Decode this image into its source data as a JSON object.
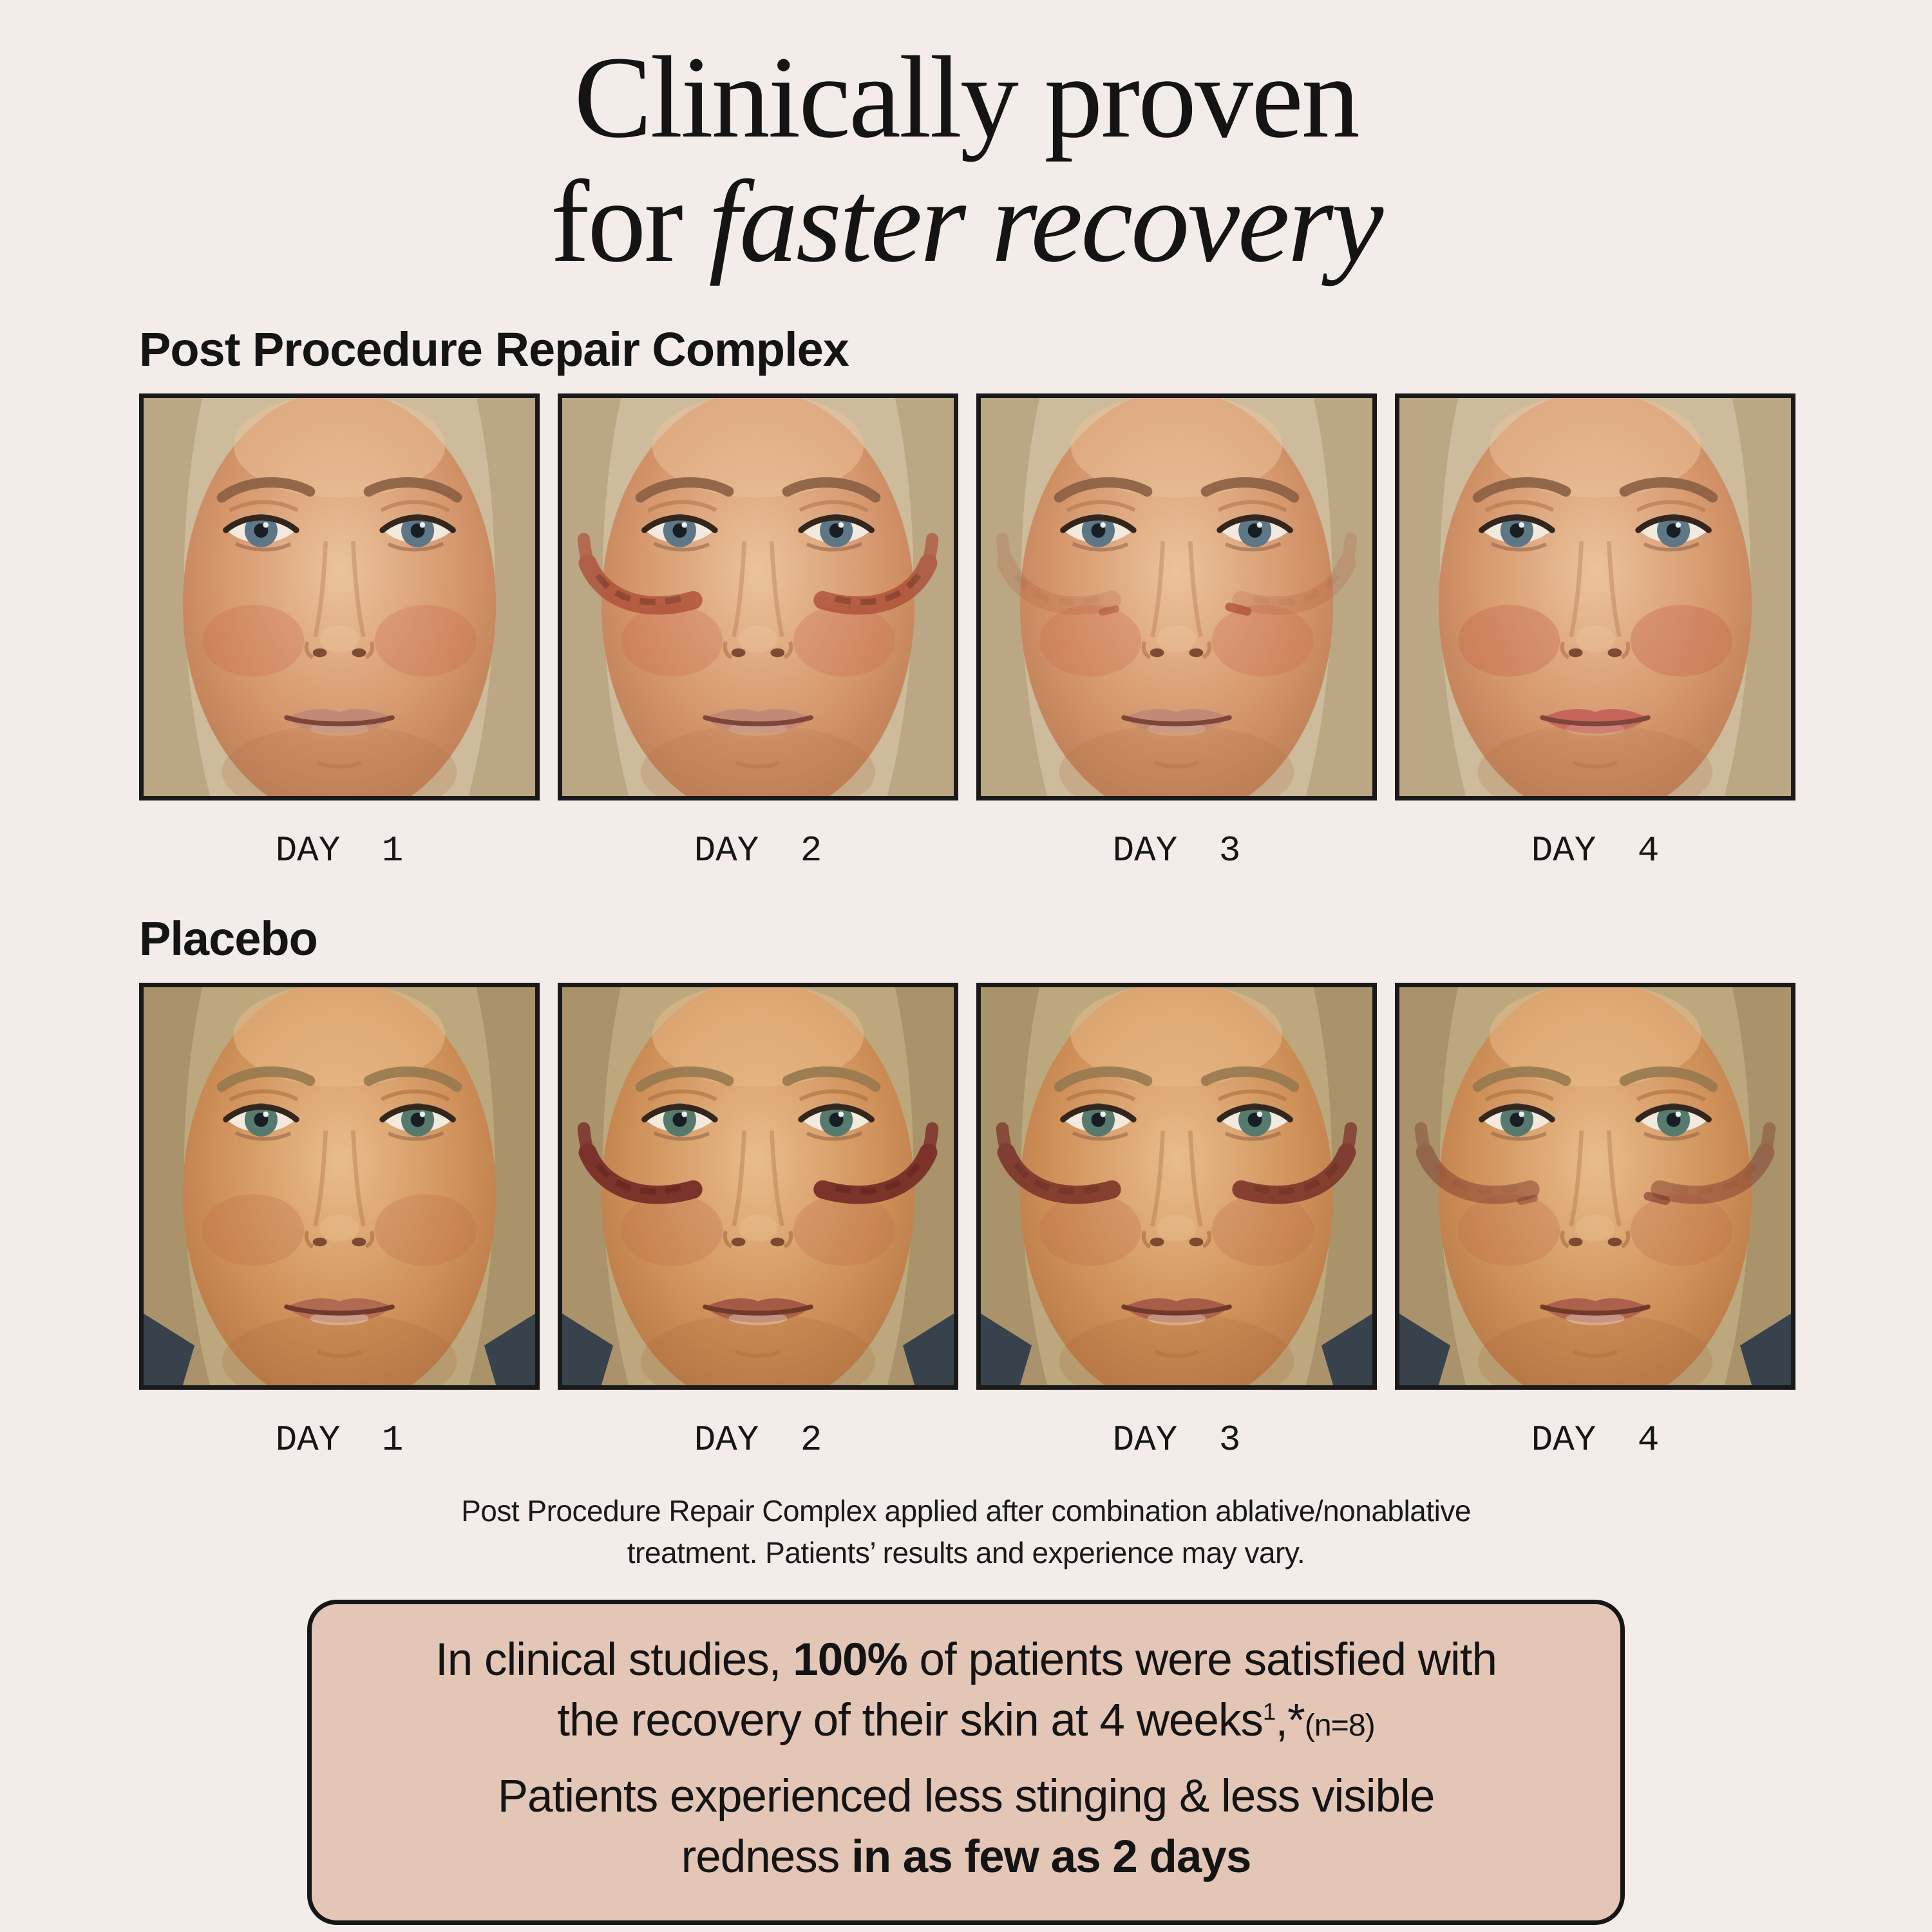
{
  "page": {
    "background_color": "#f4ece8",
    "text_color": "#141414"
  },
  "title": {
    "line1": "Clinically proven",
    "line2_prefix": "for ",
    "line2_italic": "faster recovery"
  },
  "sections": [
    {
      "id": "repair",
      "label": "Post Procedure Repair Complex",
      "face_base": {
        "hair": "#cdbb9c",
        "hair_shadow": "#b09a74",
        "skin": {
          "hi": "#ecc39b",
          "mid": "#d4946a",
          "lo": "#b07048"
        },
        "brow": "#8a5f43",
        "iris": "#5d7787",
        "blush_color": "#c96a4f",
        "blush": 0.3,
        "lip": "#c08a76",
        "lip_line": "#7e4638",
        "mark_color": "#ae4f37",
        "marks": 0,
        "gloss": false,
        "dark_corners": false,
        "spot": 0
      },
      "photos": [
        {
          "day_label": "DAY 1",
          "face": {}
        },
        {
          "day_label": "DAY 2",
          "face": {
            "marks": 0.8
          }
        },
        {
          "day_label": "DAY 3",
          "face": {
            "marks": 0.2,
            "spot": 0.75
          }
        },
        {
          "day_label": "DAY 4",
          "face": {
            "marks": 0,
            "lip": "#c6655c",
            "blush": 0.4
          }
        }
      ]
    },
    {
      "id": "placebo",
      "label": "Placebo",
      "face_base": {
        "hair": "#bda87e",
        "hair_shadow": "#9c855d",
        "skin": {
          "hi": "#e9bd8c",
          "mid": "#cf8f58",
          "lo": "#a86a3c"
        },
        "brow": "#97794f",
        "iris": "#567b6e",
        "blush_color": "#c06a49",
        "blush": 0.28,
        "lip": "#b06a52",
        "lip_line": "#6f3a2b",
        "mark_color": "#7b332a",
        "marks": 0,
        "gloss": true,
        "dark_corners": true,
        "spot": 0
      },
      "photos": [
        {
          "day_label": "DAY 1",
          "face": {}
        },
        {
          "day_label": "DAY 2",
          "face": {
            "marks": 1,
            "lip": "#a65a46"
          }
        },
        {
          "day_label": "DAY 3",
          "face": {
            "marks": 0.88,
            "lip": "#a95d48"
          }
        },
        {
          "day_label": "DAY 4",
          "face": {
            "marks": 0.45,
            "spot": 0.6,
            "lip": "#ad604c"
          }
        }
      ]
    }
  ],
  "footnote": {
    "line1": "Post Procedure Repair Complex applied after combination ablative/nonablative",
    "line2": "treatment. Patients’ results and experience may vary."
  },
  "callout": {
    "background_color": "#e4c6b6",
    "border_color": "#161616",
    "p1_seg1": "In clinical studies, ",
    "p1_bold": "100%",
    "p1_seg2": " of patients were satisfied with",
    "p1_seg3": "the recovery of their skin at 4 weeks",
    "p1_sup": "1",
    "p1_seg4": ",*",
    "p1_small": "(n=8)",
    "p2_seg1": "Patients experienced less stinging & less visible",
    "p2_seg2": "redness ",
    "p2_bold": "in as few as 2 days"
  }
}
